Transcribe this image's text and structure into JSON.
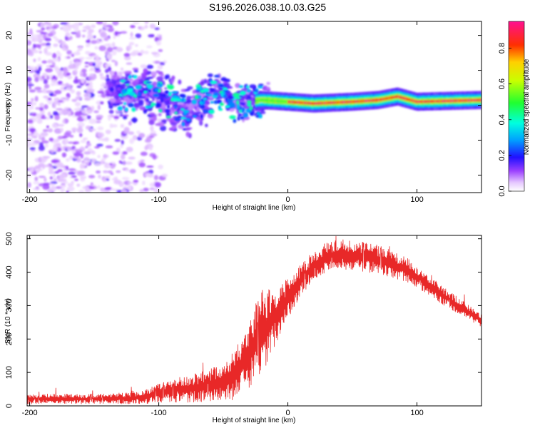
{
  "title": "S196.2026.038.10.03.G25",
  "chart_data": [
    {
      "type": "heatmap",
      "title": "S196.2026.038.10.03.G25",
      "xlabel": "Height of straight line (km)",
      "ylabel": "Frequency (Hz)",
      "xlim": [
        -202,
        150
      ],
      "ylim": [
        -25,
        24
      ],
      "xticks": [
        -200,
        -100,
        0,
        100
      ],
      "yticks": [
        -20,
        -10,
        0,
        10,
        20
      ],
      "colorbar": {
        "label": "Normalized spectral amplitude",
        "range": [
          0,
          0.95
        ],
        "ticks": [
          0.0,
          0.2,
          0.4,
          0.6,
          0.8
        ]
      },
      "ridge": {
        "description": "dominant frequency ridge",
        "points": [
          [
            -135,
            4
          ],
          [
            -110,
            3.5
          ],
          [
            -90,
            1
          ],
          [
            -80,
            -2
          ],
          [
            -65,
            2
          ],
          [
            -50,
            4
          ],
          [
            -40,
            0
          ],
          [
            -30,
            1
          ],
          [
            -20,
            1.5
          ],
          [
            0,
            1
          ],
          [
            20,
            0.5
          ],
          [
            50,
            1
          ],
          [
            70,
            1.5
          ],
          [
            85,
            2.5
          ],
          [
            100,
            1
          ],
          [
            150,
            1.5
          ]
        ]
      }
    },
    {
      "type": "line",
      "xlabel": "Height of straight line (km)",
      "ylabel": "SNR (10 * v/v)",
      "xlim": [
        -202,
        150
      ],
      "ylim": [
        0,
        510
      ],
      "xticks": [
        -200,
        -100,
        0,
        100
      ],
      "yticks": [
        0,
        100,
        200,
        300,
        400,
        500
      ],
      "series": [
        {
          "name": "SNR",
          "color": "#e82828",
          "x": [
            -200,
            -180,
            -160,
            -140,
            -120,
            -110,
            -100,
            -90,
            -80,
            -70,
            -60,
            -50,
            -40,
            -30,
            -20,
            -10,
            0,
            10,
            20,
            30,
            40,
            50,
            60,
            70,
            80,
            90,
            100,
            110,
            120,
            130,
            140,
            150
          ],
          "values": [
            20,
            22,
            20,
            21,
            23,
            28,
            40,
            45,
            50,
            55,
            62,
            70,
            95,
            160,
            220,
            270,
            320,
            375,
            420,
            445,
            455,
            450,
            445,
            438,
            425,
            410,
            385,
            360,
            330,
            305,
            280,
            255
          ],
          "noise_amplitude": [
            15,
            15,
            15,
            15,
            18,
            22,
            30,
            35,
            40,
            45,
            50,
            60,
            80,
            110,
            130,
            90,
            60,
            50,
            45,
            45,
            45,
            45,
            45,
            45,
            40,
            40,
            35,
            30,
            28,
            25,
            22,
            20
          ]
        }
      ]
    }
  ]
}
